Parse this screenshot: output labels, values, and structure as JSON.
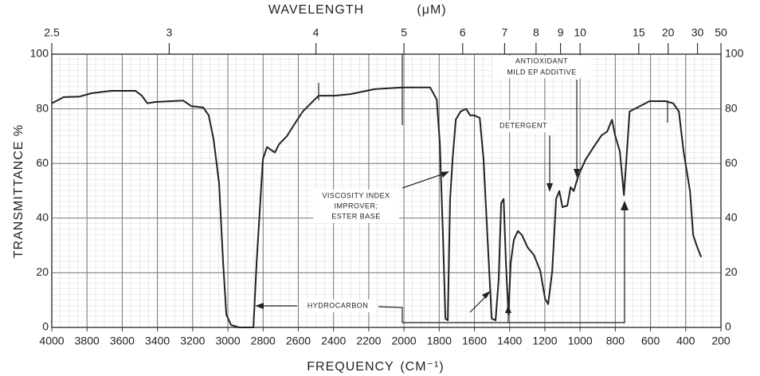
{
  "chart_data": {
    "type": "line",
    "x2label": "WAVELENGTH",
    "x2unit": "(μM)",
    "xlabel": "FREQUENCY",
    "xunit": "(CM⁻¹)",
    "ylabel": "TRANSMITTANCE %",
    "xlim": [
      4000,
      200
    ],
    "ylim": [
      0,
      100
    ],
    "xticks": [
      4000,
      3800,
      3600,
      3400,
      3200,
      3000,
      2800,
      2600,
      2400,
      2200,
      2000,
      1800,
      1600,
      1400,
      1200,
      1000,
      800,
      600,
      400,
      200
    ],
    "yticks": [
      0,
      20,
      40,
      60,
      80,
      100
    ],
    "x2ticks": [
      2.5,
      3,
      4,
      5,
      6,
      7,
      8,
      9,
      10,
      15,
      20,
      30,
      50
    ],
    "grid": true,
    "color": "#222222",
    "x": [
      4000,
      3932,
      3842,
      3774,
      3661,
      3525,
      3489,
      3457,
      3412,
      3253,
      3208,
      3140,
      3109,
      3081,
      3050,
      3027,
      3009,
      2982,
      2937,
      2855,
      2837,
      2801,
      2778,
      2733,
      2710,
      2665,
      2620,
      2575,
      2507,
      2484,
      2394,
      2303,
      2167,
      2009,
      1851,
      1814,
      1796,
      1778,
      1765,
      1751,
      1738,
      1724,
      1706,
      1679,
      1647,
      1624,
      1602,
      1570,
      1548,
      1525,
      1502,
      1480,
      1462,
      1448,
      1434,
      1421,
      1407,
      1394,
      1376,
      1353,
      1330,
      1299,
      1262,
      1226,
      1199,
      1181,
      1158,
      1136,
      1118,
      1100,
      1072,
      1054,
      1036,
      1009,
      968,
      923,
      878,
      846,
      819,
      801,
      774,
      751,
      737,
      719,
      674,
      606,
      516,
      471,
      439,
      412,
      376,
      358,
      335,
      312
    ],
    "values": [
      82,
      84.3,
      84.5,
      85.7,
      86.6,
      86.6,
      84.8,
      82,
      82.5,
      83,
      81,
      80.5,
      77.6,
      68.8,
      52.8,
      23.6,
      4.7,
      0.9,
      0,
      0,
      23.6,
      61.5,
      66,
      64,
      67,
      70,
      74.6,
      79,
      83.4,
      84.8,
      84.8,
      85.4,
      87.2,
      87.8,
      87.8,
      83.4,
      67,
      32,
      3.2,
      2.6,
      47,
      61.5,
      76,
      79,
      80,
      77.6,
      77.6,
      76.7,
      61.5,
      32,
      3.2,
      2.6,
      17.8,
      45.5,
      47,
      23.6,
      4.7,
      23.6,
      32,
      35.3,
      33.8,
      29.4,
      26.5,
      20.7,
      10.5,
      8.5,
      20.7,
      47,
      49.9,
      44,
      44.6,
      51.3,
      49.9,
      55.7,
      61.5,
      66,
      70.3,
      71.7,
      76,
      70.3,
      64.4,
      48.4,
      61.5,
      79,
      80.5,
      82.8,
      82.8,
      82,
      79,
      64.4,
      49.9,
      33.8,
      29.4,
      25.7
    ],
    "annotations": [
      {
        "lines": [
          "HYDROCARBON"
        ]
      },
      {
        "lines": [
          "VISCOSITY INDEX",
          "IMPROVER;",
          "ESTER BASE"
        ]
      },
      {
        "lines": [
          "DETERGENT"
        ]
      },
      {
        "lines": [
          "ANTIOXIDANT",
          "MILD EP ADDITIVE"
        ]
      }
    ]
  }
}
